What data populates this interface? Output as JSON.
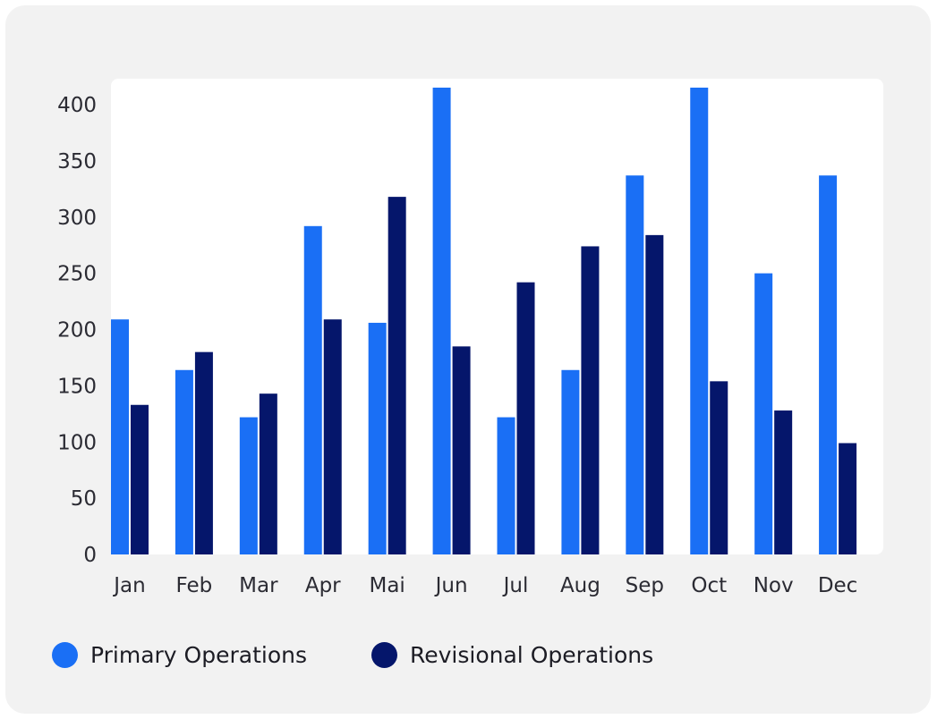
{
  "chart_data": {
    "type": "bar",
    "categories": [
      "Jan",
      "Feb",
      "Mar",
      "Apr",
      "Mai",
      "Jun",
      "Jul",
      "Aug",
      "Sep",
      "Oct",
      "Nov",
      "Dec"
    ],
    "series": [
      {
        "name": "Primary Operations",
        "color": "#1a6ff5",
        "values": [
          209,
          164,
          122,
          292,
          206,
          420,
          122,
          164,
          337,
          420,
          250,
          337
        ]
      },
      {
        "name": "Revisional Operations",
        "color": "#05166b",
        "values": [
          133,
          180,
          143,
          209,
          318,
          185,
          242,
          274,
          284,
          154,
          128,
          99
        ]
      }
    ],
    "yticks": [
      0,
      50,
      100,
      150,
      200,
      250,
      300,
      350,
      400
    ],
    "ylim": [
      0,
      420
    ],
    "grid": false,
    "legend_position": "bottom-left",
    "title": "",
    "xlabel": "",
    "ylabel": ""
  },
  "legend": [
    {
      "label": "Primary Operations",
      "color": "#1a6ff5"
    },
    {
      "label": "Revisional Operations",
      "color": "#05166b"
    }
  ]
}
